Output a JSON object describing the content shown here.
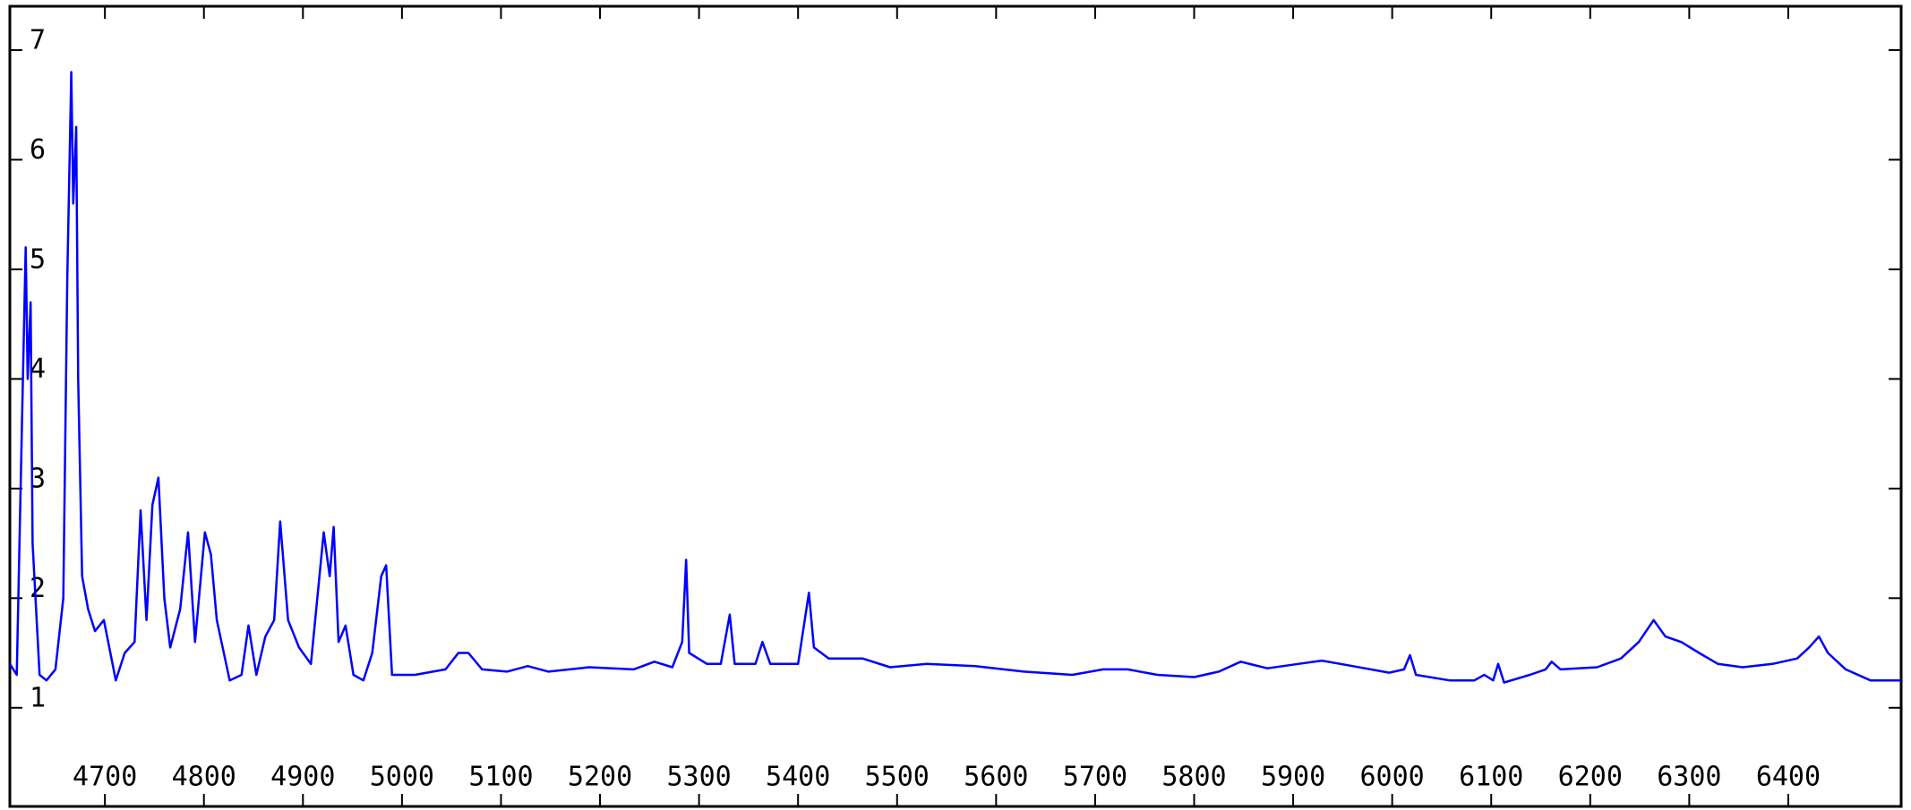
{
  "chart_data": {
    "type": "line",
    "color": "#0000ff",
    "x": [
      4604,
      4611,
      4616,
      4620,
      4622,
      4625,
      4627,
      4634,
      4641,
      4650,
      4658,
      4662,
      4666,
      4668,
      4671,
      4673,
      4677,
      4683,
      4690,
      4699,
      4711,
      4720,
      4730,
      4736,
      4742,
      4748,
      4754,
      4760,
      4766,
      4776,
      4784,
      4791,
      4801,
      4807,
      4813,
      4826,
      4838,
      4845,
      4853,
      4862,
      4871,
      4877,
      4885,
      4896,
      4908,
      4921,
      4927,
      4931,
      4936,
      4943,
      4951,
      4961,
      4970,
      4979,
      4984,
      4990,
      5013,
      5044,
      5057,
      5067,
      5081,
      5106,
      5127,
      5148,
      5189,
      5234,
      5255,
      5273,
      5283,
      5287,
      5290,
      5308,
      5322,
      5331,
      5336,
      5357,
      5364,
      5372,
      5400,
      5411,
      5416,
      5431,
      5465,
      5493,
      5530,
      5579,
      5628,
      5677,
      5708,
      5733,
      5763,
      5800,
      5825,
      5847,
      5874,
      5905,
      5929,
      5960,
      5997,
      6012,
      6018,
      6024,
      6058,
      6083,
      6093,
      6102,
      6107,
      6113,
      6139,
      6155,
      6161,
      6170,
      6207,
      6231,
      6249,
      6264,
      6276,
      6292,
      6310,
      6329,
      6354,
      6384,
      6409,
      6421,
      6431,
      6440,
      6458,
      6483,
      6514
    ],
    "values": [
      1.4,
      1.3,
      3.5,
      5.2,
      4.0,
      4.7,
      2.5,
      1.3,
      1.25,
      1.35,
      2.0,
      4.9,
      6.8,
      5.6,
      6.3,
      4.0,
      2.2,
      1.9,
      1.7,
      1.8,
      1.25,
      1.5,
      1.6,
      2.8,
      1.8,
      2.85,
      3.1,
      2.0,
      1.55,
      1.9,
      2.6,
      1.6,
      2.6,
      2.4,
      1.8,
      1.25,
      1.3,
      1.75,
      1.3,
      1.65,
      1.8,
      2.7,
      1.8,
      1.55,
      1.4,
      2.6,
      2.2,
      2.65,
      1.6,
      1.75,
      1.3,
      1.25,
      1.5,
      2.2,
      2.3,
      1.3,
      1.3,
      1.35,
      1.5,
      1.5,
      1.35,
      1.33,
      1.38,
      1.33,
      1.37,
      1.35,
      1.42,
      1.37,
      1.6,
      2.35,
      1.5,
      1.4,
      1.4,
      1.85,
      1.4,
      1.4,
      1.6,
      1.4,
      1.4,
      2.05,
      1.55,
      1.45,
      1.45,
      1.37,
      1.4,
      1.38,
      1.33,
      1.3,
      1.35,
      1.35,
      1.3,
      1.28,
      1.33,
      1.42,
      1.36,
      1.4,
      1.43,
      1.38,
      1.32,
      1.35,
      1.48,
      1.3,
      1.25,
      1.25,
      1.3,
      1.25,
      1.4,
      1.23,
      1.3,
      1.35,
      1.42,
      1.35,
      1.37,
      1.45,
      1.6,
      1.8,
      1.65,
      1.6,
      1.5,
      1.4,
      1.37,
      1.4,
      1.45,
      1.55,
      1.65,
      1.5,
      1.35,
      1.25,
      1.25
    ],
    "xlim": [
      4604,
      6514
    ],
    "ylim": [
      0.1,
      7.4
    ],
    "xticks": [
      4700,
      4800,
      4900,
      5000,
      5100,
      5200,
      5300,
      5400,
      5500,
      5600,
      5700,
      5800,
      5900,
      6000,
      6100,
      6200,
      6300,
      6400
    ],
    "yticks": [
      1,
      2,
      3,
      4,
      5,
      6,
      7
    ]
  }
}
